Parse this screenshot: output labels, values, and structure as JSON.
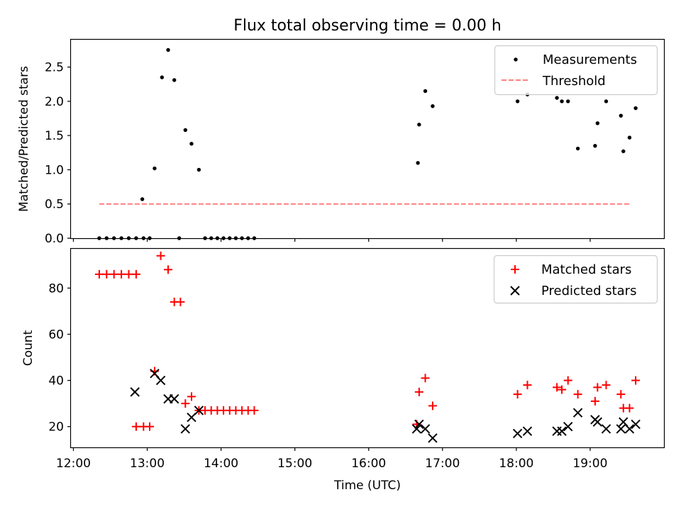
{
  "chart_data": [
    {
      "type": "scatter",
      "title": "Flux total observing time = 0.00 h",
      "xlabel": "",
      "ylabel": "Matched/Predicted stars",
      "xlim": [
        "11:58",
        "20:00"
      ],
      "ylim": [
        0,
        2.9
      ],
      "yticks": [
        "0.0",
        "0.5",
        "1.0",
        "1.5",
        "2.0",
        "2.5"
      ],
      "xtick_labels_shown": false,
      "legend_position": "top-right",
      "series": [
        {
          "name": "Measurements",
          "marker": "dot",
          "color": "#000000",
          "points": [
            [
              "12:21",
              0
            ],
            [
              "12:27",
              0
            ],
            [
              "12:33",
              0
            ],
            [
              "12:39",
              0
            ],
            [
              "12:45",
              0
            ],
            [
              "12:51",
              0
            ],
            [
              "12:56",
              0.57
            ],
            [
              "12:57",
              0
            ],
            [
              "13:02",
              0
            ],
            [
              "13:06",
              1.02
            ],
            [
              "13:12",
              2.35
            ],
            [
              "13:17",
              2.75
            ],
            [
              "13:22",
              2.31
            ],
            [
              "13:26",
              0
            ],
            [
              "13:31",
              1.58
            ],
            [
              "13:36",
              1.38
            ],
            [
              "13:42",
              1.0
            ],
            [
              "13:47",
              0
            ],
            [
              "13:52",
              0
            ],
            [
              "13:57",
              0
            ],
            [
              "14:02",
              0
            ],
            [
              "14:07",
              0
            ],
            [
              "14:12",
              0
            ],
            [
              "14:17",
              0
            ],
            [
              "14:22",
              0
            ],
            [
              "14:27",
              0
            ],
            [
              "16:40",
              1.1
            ],
            [
              "16:41",
              1.66
            ],
            [
              "16:46",
              2.15
            ],
            [
              "16:52",
              1.93
            ],
            [
              "18:01",
              2.0
            ],
            [
              "18:09",
              2.1
            ],
            [
              "18:33",
              2.05
            ],
            [
              "18:37",
              2.0
            ],
            [
              "18:42",
              2.0
            ],
            [
              "18:50",
              1.31
            ],
            [
              "19:04",
              1.35
            ],
            [
              "19:06",
              1.68
            ],
            [
              "19:13",
              2.0
            ],
            [
              "19:25",
              1.79
            ],
            [
              "19:27",
              1.27
            ],
            [
              "19:32",
              1.47
            ],
            [
              "19:37",
              1.9
            ]
          ]
        },
        {
          "name": "Threshold",
          "type": "line",
          "style": "dashed",
          "color": "#ff7f7f",
          "points": [
            [
              "12:21",
              0.5
            ],
            [
              "19:32",
              0.5
            ]
          ]
        }
      ]
    },
    {
      "type": "scatter",
      "title": "",
      "xlabel": "Time (UTC)",
      "ylabel": "Count",
      "xlim": [
        "11:58",
        "20:00"
      ],
      "ylim": [
        11,
        97
      ],
      "yticks": [
        "20",
        "40",
        "60",
        "80"
      ],
      "xticks": [
        "12:00",
        "13:00",
        "14:00",
        "15:00",
        "16:00",
        "17:00",
        "18:00",
        "19:00"
      ],
      "legend_position": "top-right",
      "series": [
        {
          "name": "Matched stars",
          "marker": "plus",
          "color": "#ff0000",
          "points": [
            [
              "12:21",
              86
            ],
            [
              "12:27",
              86
            ],
            [
              "12:33",
              86
            ],
            [
              "12:39",
              86
            ],
            [
              "12:45",
              86
            ],
            [
              "12:51",
              86
            ],
            [
              "12:51",
              20
            ],
            [
              "12:57",
              20
            ],
            [
              "13:02",
              20
            ],
            [
              "13:06",
              44
            ],
            [
              "13:11",
              94
            ],
            [
              "13:17",
              88
            ],
            [
              "13:22",
              74
            ],
            [
              "13:27",
              74
            ],
            [
              "13:31",
              30
            ],
            [
              "13:36",
              33
            ],
            [
              "13:42",
              27
            ],
            [
              "13:47",
              27
            ],
            [
              "13:52",
              27
            ],
            [
              "13:57",
              27
            ],
            [
              "14:02",
              27
            ],
            [
              "14:07",
              27
            ],
            [
              "14:12",
              27
            ],
            [
              "14:17",
              27
            ],
            [
              "14:22",
              27
            ],
            [
              "14:27",
              27
            ],
            [
              "16:39",
              21
            ],
            [
              "16:41",
              35
            ],
            [
              "16:46",
              41
            ],
            [
              "16:52",
              29
            ],
            [
              "18:01",
              34
            ],
            [
              "18:09",
              38
            ],
            [
              "18:33",
              37
            ],
            [
              "18:37",
              36
            ],
            [
              "18:42",
              40
            ],
            [
              "18:50",
              34
            ],
            [
              "19:04",
              31
            ],
            [
              "19:06",
              37
            ],
            [
              "19:13",
              38
            ],
            [
              "19:25",
              34
            ],
            [
              "19:27",
              28
            ],
            [
              "19:32",
              28
            ],
            [
              "19:37",
              40
            ]
          ]
        },
        {
          "name": "Predicted stars",
          "marker": "x",
          "color": "#000000",
          "points": [
            [
              "12:50",
              35
            ],
            [
              "13:06",
              43
            ],
            [
              "13:11",
              40
            ],
            [
              "13:17",
              32
            ],
            [
              "13:22",
              32
            ],
            [
              "13:31",
              19
            ],
            [
              "13:36",
              24
            ],
            [
              "13:42",
              27
            ],
            [
              "16:39",
              19
            ],
            [
              "16:41",
              21
            ],
            [
              "16:46",
              19
            ],
            [
              "16:52",
              15
            ],
            [
              "18:01",
              17
            ],
            [
              "18:09",
              18
            ],
            [
              "18:33",
              18
            ],
            [
              "18:37",
              18
            ],
            [
              "18:42",
              20
            ],
            [
              "18:50",
              26
            ],
            [
              "19:04",
              23
            ],
            [
              "19:06",
              22
            ],
            [
              "19:13",
              19
            ],
            [
              "19:25",
              19
            ],
            [
              "19:27",
              22
            ],
            [
              "19:32",
              19
            ],
            [
              "19:37",
              21
            ]
          ]
        }
      ]
    }
  ]
}
